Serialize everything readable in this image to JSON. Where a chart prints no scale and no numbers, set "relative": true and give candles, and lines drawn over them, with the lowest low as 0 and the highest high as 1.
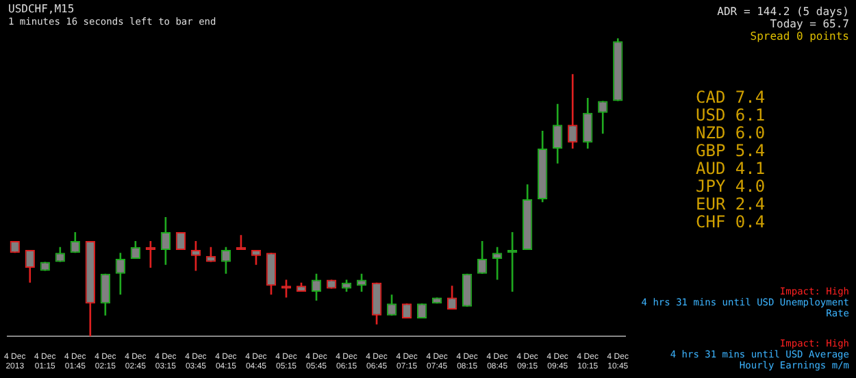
{
  "chart_data": {
    "type": "candlestick",
    "title": "USDCHF,M15",
    "subtitle": "1 minutes 16 seconds left to bar end",
    "relative": true,
    "categories": [
      "4 Dec 2013",
      null,
      "4 Dec 01:15",
      null,
      "4 Dec 01:45",
      null,
      "4 Dec 02:15",
      null,
      "4 Dec 02:45",
      null,
      "4 Dec 03:15",
      null,
      "4 Dec 03:45",
      null,
      "4 Dec 04:15",
      null,
      "4 Dec 04:45",
      null,
      "4 Dec 05:15",
      null,
      "4 Dec 05:45",
      null,
      "4 Dec 06:15",
      null,
      "4 Dec 06:45",
      null,
      "4 Dec 07:15",
      null,
      "4 Dec 07:45",
      null,
      "4 Dec 08:15",
      null,
      "4 Dec 08:45",
      null,
      "4 Dec 09:15",
      null,
      "4 Dec 09:45",
      null,
      "4 Dec 10:15",
      null,
      "4 Dec 10:45"
    ],
    "ohlc": [
      [
        0.32,
        0.32,
        0.28,
        0.28
      ],
      [
        0.29,
        0.29,
        0.18,
        0.23
      ],
      [
        0.22,
        0.25,
        0.22,
        0.25
      ],
      [
        0.25,
        0.3,
        0.25,
        0.28
      ],
      [
        0.28,
        0.35,
        0.28,
        0.32
      ],
      [
        0.32,
        0.32,
        0,
        0.11
      ],
      [
        0.11,
        0.21,
        0.07,
        0.21
      ],
      [
        0.21,
        0.28,
        0.14,
        0.26
      ],
      [
        0.26,
        0.32,
        0.26,
        0.3
      ],
      [
        0.3,
        0.32,
        0.23,
        0.29
      ],
      [
        0.29,
        0.4,
        0.24,
        0.35
      ],
      [
        0.35,
        0.35,
        0.29,
        0.29
      ],
      [
        0.29,
        0.32,
        0.22,
        0.27
      ],
      [
        0.27,
        0.3,
        0.25,
        0.25
      ],
      [
        0.25,
        0.3,
        0.21,
        0.29
      ],
      [
        0.3,
        0.34,
        0.29,
        0.29
      ],
      [
        0.29,
        0.29,
        0.24,
        0.27
      ],
      [
        0.28,
        0.28,
        0.14,
        0.17
      ],
      [
        0.17,
        0.19,
        0.13,
        0.16
      ],
      [
        0.17,
        0.18,
        0.15,
        0.15
      ],
      [
        0.15,
        0.21,
        0.12,
        0.19
      ],
      [
        0.19,
        0.19,
        0.16,
        0.16
      ],
      [
        0.16,
        0.19,
        0.15,
        0.18
      ],
      [
        0.17,
        0.21,
        0.15,
        0.19
      ],
      [
        0.18,
        0.18,
        0.04,
        0.07
      ],
      [
        0.07,
        0.14,
        0.07,
        0.11
      ],
      [
        0.11,
        0.11,
        0.06,
        0.06
      ],
      [
        0.06,
        0.11,
        0.06,
        0.11
      ],
      [
        0.11,
        0.13,
        0.11,
        0.13
      ],
      [
        0.13,
        0.17,
        0.09,
        0.09
      ],
      [
        0.1,
        0.21,
        0.1,
        0.21
      ],
      [
        0.21,
        0.32,
        0.21,
        0.26
      ],
      [
        0.26,
        0.3,
        0.19,
        0.28
      ],
      [
        0.28,
        0.35,
        0.15,
        0.29
      ],
      [
        0.29,
        0.51,
        0.29,
        0.46
      ],
      [
        0.46,
        0.69,
        0.45,
        0.63
      ],
      [
        0.63,
        0.78,
        0.58,
        0.71
      ],
      [
        0.71,
        0.88,
        0.63,
        0.65
      ],
      [
        0.65,
        0.8,
        0.63,
        0.75
      ],
      [
        0.75,
        0.79,
        0.68,
        0.79
      ],
      [
        0.79,
        1.0,
        0.79,
        0.99
      ]
    ],
    "annotations": [
      "ADR = 144.2  (5 days)",
      "Today = 65.7",
      "Spread 0 points",
      "CAD  7.4",
      "USD  6.1",
      "NZD  6.0",
      "GBP  5.4",
      "AUD  4.1",
      "JPY  4.0",
      "EUR  2.4",
      "CHF  0.4",
      "Impact: High",
      "4 hrs 31 mins until USD Unemployment Rate",
      "Impact: High",
      "4 hrs 31 mins until USD Average Hourly Earnings m/m"
    ]
  }
}
